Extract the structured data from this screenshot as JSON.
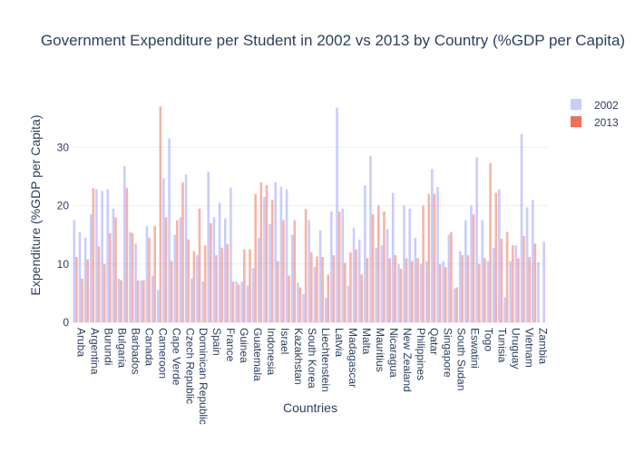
{
  "chart_data": {
    "type": "bar",
    "title": "Government Expenditure per Student in 2002 vs 2013 by Country (%GDP per Capita)",
    "xlabel": "Countries",
    "ylabel": "Expenditure (%GDP per Capita)",
    "ylim": [
      0,
      40
    ],
    "yticks": [
      0,
      10,
      20,
      30
    ],
    "grid": true,
    "legend_position": "top-right",
    "tick_labels": [
      "Aruba",
      "Argentina",
      "Burundi",
      "Bulgaria",
      "Barbados",
      "Canada",
      "Cameroon",
      "Cape Verde",
      "Czech Republic",
      "Dominican Republic",
      "Spain",
      "France",
      "Guinea",
      "Guatemala",
      "Indonesia",
      "Israel",
      "Kazakhstan",
      "South Korea",
      "Liechtenstein",
      "Latvia",
      "Madagascar",
      "Malta",
      "Mauritius",
      "Nicaragua",
      "New Zealand",
      "Philippines",
      "Qatar",
      "Singapore",
      "South Sudan",
      "Eswatini",
      "Togo",
      "Tunisia",
      "Uruguay",
      "Vietnam",
      "Zambia"
    ],
    "series": [
      {
        "name": "2002",
        "color": "#636efa",
        "values": [
          17.5,
          15.5,
          14.5,
          18.5,
          22.8,
          22.5,
          22.8,
          19.5,
          7.5,
          26.8,
          15.5,
          13.5,
          7.2,
          16.5,
          8,
          5.5,
          24.7,
          31.5,
          15,
          18,
          25.3,
          7.5,
          11.5,
          7,
          25.8,
          18,
          20.5,
          17.8,
          23.1,
          7,
          7,
          6.3,
          9.3,
          14.5,
          21.5,
          16.8,
          24,
          23.2,
          22.8,
          15,
          6.8,
          4.8,
          17.5,
          9.5,
          15.8,
          4.2,
          19,
          36.8,
          19.5,
          6.3,
          16.2,
          14.2,
          23.5,
          28.5,
          12.8,
          13.2,
          16,
          22.2,
          10,
          20,
          19.5,
          14.5,
          10,
          10.5,
          26.3,
          23.2,
          10.5,
          15,
          5.8,
          12.2,
          17.5,
          20,
          28.3,
          17.5,
          10.5,
          12.8,
          22.8,
          4.3,
          10.5,
          13.2,
          32.3,
          19.7,
          21,
          10.3,
          13.8
        ]
      },
      {
        "name": "2013",
        "color": "#ef553b",
        "values": [
          11.2,
          7.5,
          10.8,
          23,
          13,
          10,
          15.3,
          18,
          7.2,
          23,
          15.3,
          7.2,
          7.2,
          14.5,
          16.5,
          37,
          18,
          10.5,
          17.5,
          24,
          14.2,
          12.2,
          19.5,
          13.2,
          17,
          11.5,
          12.8,
          13.4,
          7,
          6.5,
          12.5,
          12.5,
          22,
          24,
          23.5,
          21,
          10.5,
          17.5,
          8,
          17.5,
          6,
          19.4,
          12,
          11.3,
          11.2,
          8.2,
          11.5,
          19,
          10.2,
          12,
          12.5,
          8.2,
          11,
          18.5,
          20,
          19,
          11,
          11.5,
          9.2,
          11,
          10.5,
          11,
          20,
          22,
          22,
          10,
          9.5,
          15.5,
          6,
          11.5,
          11.5,
          18.5,
          10,
          11,
          27.3,
          22.2,
          14.3,
          15.5,
          13.2,
          11,
          14.8,
          11.2,
          13.5
        ]
      }
    ]
  }
}
